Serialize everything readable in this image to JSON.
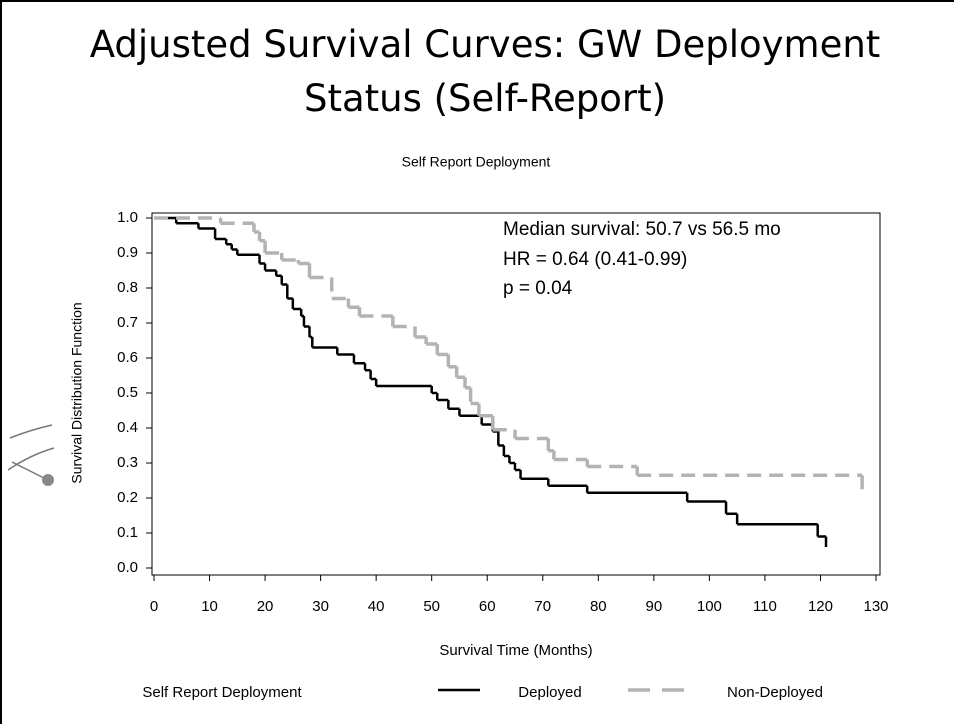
{
  "slide_title": "Adjusted Survival Curves:  GW Deployment Status (Self-Report)",
  "chart_data": {
    "type": "line",
    "step": true,
    "title": "Self Report  Deployment",
    "xlabel": "Survival Time (Months)",
    "ylabel": "Survival Distribution Function",
    "annotations": [
      "Median survival: 50.7 vs 56.5 mo",
      "HR = 0.64 (0.41-0.99)",
      "p = 0.04"
    ],
    "legend_title": "Self Report Deployment",
    "xlim": [
      0,
      130
    ],
    "ylim": [
      0,
      1
    ],
    "xticks": [
      0,
      10,
      20,
      30,
      40,
      50,
      60,
      70,
      80,
      90,
      100,
      110,
      120,
      130
    ],
    "yticks": [
      {
        "value": 0,
        "label": "0.0"
      },
      0.1,
      0.2,
      0.3,
      0.4,
      0.5,
      0.6,
      0.7,
      0.8,
      0.9,
      {
        "value": 1,
        "label": "1.0"
      }
    ],
    "series": [
      {
        "name": "Deployed",
        "color": "#000000",
        "dashed": false,
        "x": [
          0,
          4,
          8,
          11,
          13,
          14,
          15,
          19,
          20,
          22,
          23,
          24,
          25,
          26.5,
          27,
          28,
          28.5,
          33,
          36,
          38,
          39,
          40,
          50,
          51,
          53,
          55,
          59,
          61,
          62,
          63,
          64,
          65,
          66,
          71,
          78,
          96,
          103,
          105,
          119.5,
          121
        ],
        "values": [
          1.0,
          0.985,
          0.97,
          0.94,
          0.925,
          0.91,
          0.895,
          0.87,
          0.85,
          0.835,
          0.81,
          0.77,
          0.74,
          0.72,
          0.69,
          0.66,
          0.63,
          0.61,
          0.585,
          0.565,
          0.54,
          0.52,
          0.5,
          0.48,
          0.455,
          0.435,
          0.41,
          0.39,
          0.35,
          0.32,
          0.3,
          0.28,
          0.255,
          0.235,
          0.215,
          0.19,
          0.155,
          0.125,
          0.09,
          0.06
        ]
      },
      {
        "name": "Non-Deployed",
        "color": "#b3b3b3",
        "dashed": true,
        "x": [
          0,
          12,
          18,
          19,
          20,
          23,
          26,
          28,
          32,
          35,
          37,
          43,
          47,
          49,
          51,
          53,
          54.5,
          56,
          57,
          58.5,
          61,
          65,
          71,
          72,
          78,
          87,
          127.5
        ],
        "values": [
          1.0,
          0.985,
          0.96,
          0.935,
          0.9,
          0.88,
          0.87,
          0.83,
          0.77,
          0.745,
          0.72,
          0.69,
          0.66,
          0.64,
          0.61,
          0.575,
          0.545,
          0.515,
          0.47,
          0.435,
          0.395,
          0.37,
          0.335,
          0.31,
          0.29,
          0.265,
          0.21
        ]
      }
    ]
  }
}
